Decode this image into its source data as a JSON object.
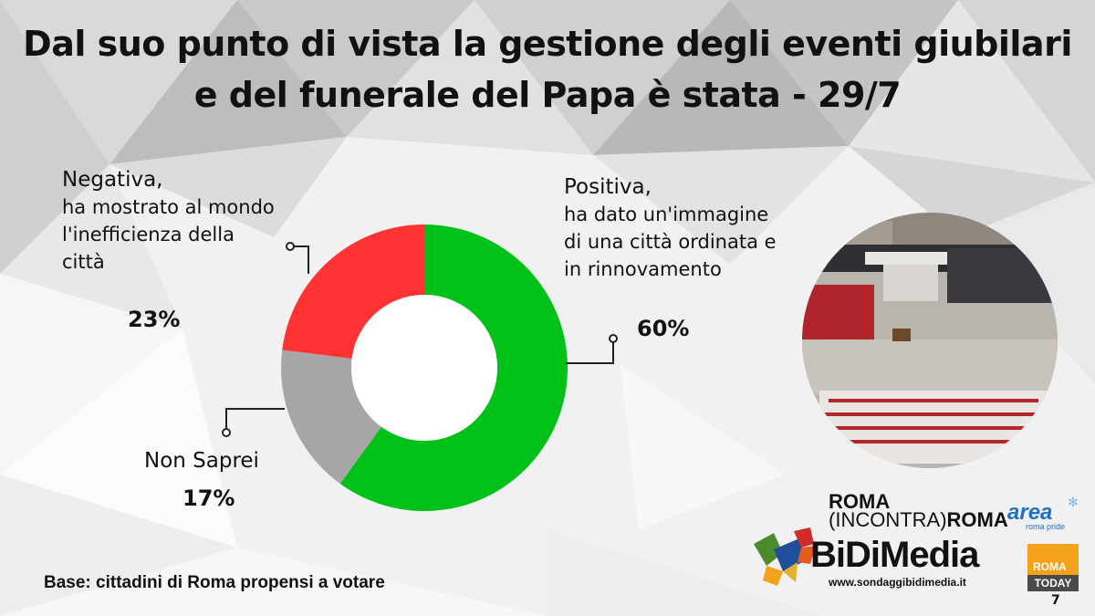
{
  "title": {
    "line1": "Dal suo punto di vista la gestione degli eventi giubilari",
    "line2": "e del funerale del Papa è stata - 29/7"
  },
  "chart_data": {
    "type": "pie",
    "variant": "donut",
    "slices": [
      {
        "label": "Positiva, ha dato un'immagine di una città ordinata e in rinnovamento",
        "value": 60,
        "color": "#00c118"
      },
      {
        "label": "Non Saprei",
        "value": 17,
        "color": "#a6a6a6"
      },
      {
        "label": "Negativa, ha mostrato al mondo l'inefficienza della città",
        "value": 23,
        "color": "#ff3333"
      }
    ]
  },
  "labels": {
    "negativa": {
      "head": "Negativa,",
      "lines": [
        "ha mostrato al mondo",
        "l'inefficienza della",
        "città"
      ],
      "pct": "23%"
    },
    "positiva": {
      "head": "Positiva,",
      "lines": [
        "ha dato un'immagine",
        "di una città ordinata e",
        "in rinnovamento"
      ],
      "pct": "60%"
    },
    "nonsaprei": {
      "head": "Non Saprei",
      "pct": "17%"
    }
  },
  "footer": {
    "base": "Base: cittadini di Roma propensi a votare",
    "page": "7"
  },
  "logos": {
    "rir_line1": "ROMA",
    "rir_line2_a": "(INCONTRA)",
    "rir_line2_b": "ROMA",
    "area": "area",
    "area_sub": "roma pride",
    "bidimedia": "BiDiMedia",
    "bidimedia_url": "www.sondaggibidimedia.it",
    "roma_today_1": "ROMA",
    "roma_today_2": "TODAY"
  }
}
